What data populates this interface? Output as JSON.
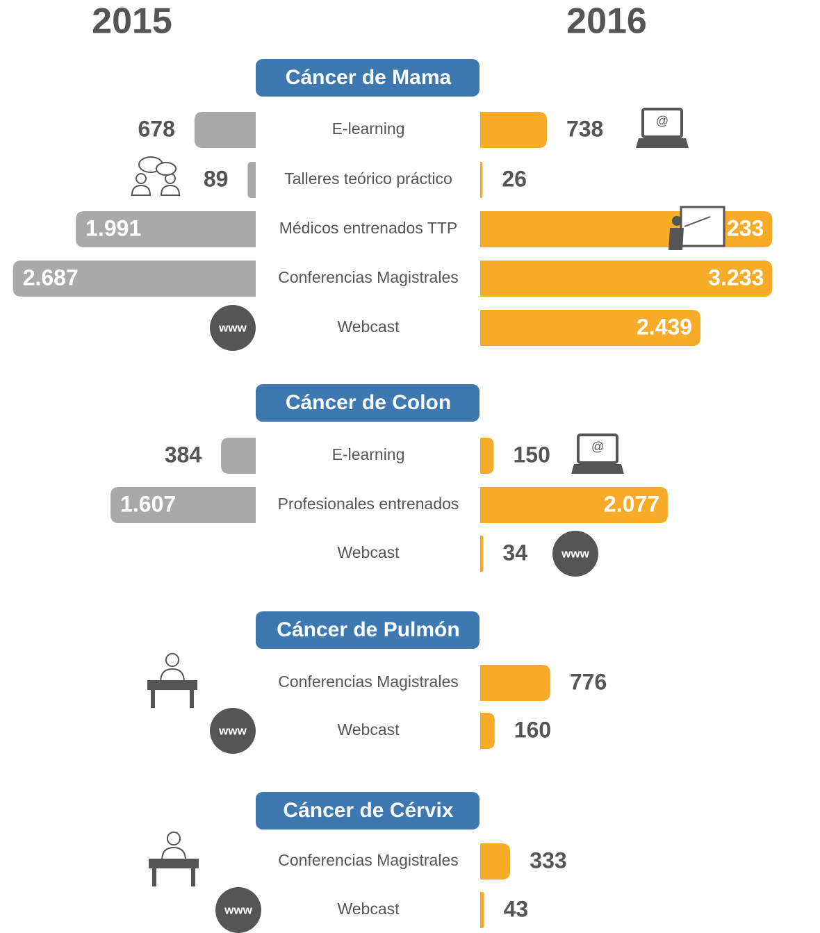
{
  "years": [
    "2015",
    "2016"
  ],
  "webcast_icon": "www",
  "elearning_icon": "@",
  "colors": {
    "left": "#a9a9a9",
    "right": "#f8ab27",
    "header": "#3d78b0"
  },
  "sections": [
    {
      "title": "Cáncer de Mama",
      "rows": [
        {
          "label": "E-learning",
          "left": 678,
          "right": 738
        },
        {
          "label": "Talleres teórico práctico",
          "left": 89,
          "right": 26
        },
        {
          "label": "Médicos entrenados TTP",
          "left": {
            "value": 1991,
            "label": "1.991"
          },
          "right": {
            "value": 3233,
            "label": "3.233"
          }
        },
        {
          "label": "Conferencias Magistrales",
          "left": {
            "value": 2687,
            "label": "2.687"
          },
          "right": {
            "value": 3233,
            "label": "3.233"
          }
        },
        {
          "label": "Webcast",
          "left": null,
          "right": {
            "value": 2439,
            "label": "2.439"
          }
        }
      ]
    },
    {
      "title": "Cáncer de Colon",
      "rows": [
        {
          "label": "E-learning",
          "left": 384,
          "right": 150
        },
        {
          "label": "Profesionales entrenados",
          "left": {
            "value": 1607,
            "label": "1.607"
          },
          "right": {
            "value": 2077,
            "label": "2.077"
          }
        },
        {
          "label": "Webcast",
          "left": null,
          "right": 34
        }
      ]
    },
    {
      "title": "Cáncer de Pulmón",
      "rows": [
        {
          "label": "Conferencias Magistrales",
          "left": null,
          "right": 776
        },
        {
          "label": "Webcast",
          "left": null,
          "right": 160
        }
      ]
    },
    {
      "title": "Cáncer de Cérvix",
      "rows": [
        {
          "label": "Conferencias Magistrales",
          "left": null,
          "right": 333
        },
        {
          "label": "Webcast",
          "left": null,
          "right": 43
        }
      ]
    }
  ]
}
